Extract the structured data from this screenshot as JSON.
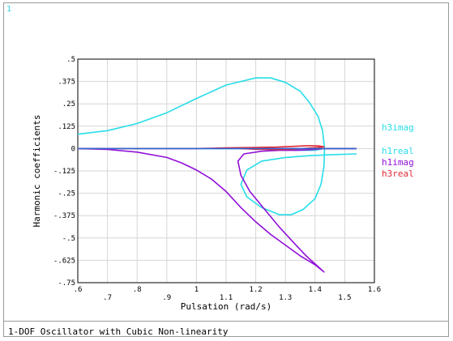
{
  "window": {
    "number": "1"
  },
  "footer": {
    "title": "1-DOF Oscillator with Cubic Non-linearity"
  },
  "chart_data": {
    "type": "line",
    "xlabel": "Pulsation (rad/s)",
    "ylabel": "Harmonic coefficients",
    "xlim": [
      0.6,
      1.6
    ],
    "ylim": [
      -0.75,
      0.5
    ],
    "xticks": [
      {
        "v": 0.6,
        "label": ".6"
      },
      {
        "v": 0.7,
        "label": ".7"
      },
      {
        "v": 0.8,
        "label": ".8"
      },
      {
        "v": 0.9,
        "label": ".9"
      },
      {
        "v": 1.0,
        "label": "1"
      },
      {
        "v": 1.1,
        "label": "1.1"
      },
      {
        "v": 1.2,
        "label": "1.2"
      },
      {
        "v": 1.3,
        "label": "1.3"
      },
      {
        "v": 1.4,
        "label": "1.4"
      },
      {
        "v": 1.5,
        "label": "1.5"
      },
      {
        "v": 1.6,
        "label": "1.6"
      }
    ],
    "yticks": [
      {
        "v": 0.5,
        "label": ".5"
      },
      {
        "v": 0.375,
        "label": ".375"
      },
      {
        "v": 0.25,
        "label": ".25"
      },
      {
        "v": 0.125,
        "label": ".125"
      },
      {
        "v": 0,
        "label": "0"
      },
      {
        "v": -0.125,
        "label": "-.125"
      },
      {
        "v": -0.25,
        "label": "-.25"
      },
      {
        "v": -0.375,
        "label": "-.375"
      },
      {
        "v": -0.5,
        "label": "-.5"
      },
      {
        "v": -0.625,
        "label": "-.625"
      },
      {
        "v": -0.75,
        "label": "-.75"
      }
    ],
    "grid": true,
    "series": [
      {
        "name": "h3imag",
        "color": "#27dde9",
        "points": [
          [
            0.6,
            0.08
          ],
          [
            0.7,
            0.1
          ],
          [
            0.8,
            0.14
          ],
          [
            0.9,
            0.2
          ],
          [
            1.0,
            0.28
          ],
          [
            1.1,
            0.355
          ],
          [
            1.2,
            0.395
          ],
          [
            1.25,
            0.395
          ],
          [
            1.3,
            0.37
          ],
          [
            1.35,
            0.32
          ],
          [
            1.38,
            0.26
          ],
          [
            1.41,
            0.18
          ],
          [
            1.425,
            0.1
          ],
          [
            1.432,
            0.0
          ],
          [
            1.43,
            -0.1
          ],
          [
            1.42,
            -0.2
          ],
          [
            1.4,
            -0.28
          ],
          [
            1.36,
            -0.34
          ],
          [
            1.32,
            -0.37
          ],
          [
            1.28,
            -0.37
          ],
          [
            1.22,
            -0.33
          ],
          [
            1.17,
            -0.27
          ],
          [
            1.15,
            -0.2
          ],
          [
            1.17,
            -0.12
          ],
          [
            1.22,
            -0.07
          ],
          [
            1.3,
            -0.05
          ],
          [
            1.38,
            -0.04
          ],
          [
            1.45,
            -0.035
          ],
          [
            1.54,
            -0.03
          ]
        ]
      },
      {
        "name": "h1real",
        "color": "#27dde9",
        "points": [
          [
            0.6,
            0.0
          ],
          [
            0.8,
            0.0
          ],
          [
            1.0,
            0.0
          ],
          [
            1.15,
            0.0
          ],
          [
            1.25,
            0.0
          ],
          [
            1.3,
            -0.005
          ],
          [
            1.35,
            -0.01
          ],
          [
            1.4,
            -0.01
          ],
          [
            1.43,
            0.0
          ],
          [
            1.54,
            0.0
          ]
        ]
      },
      {
        "name": "h1imag",
        "color": "#9010d8",
        "points": [
          [
            0.6,
            0.0
          ],
          [
            0.7,
            -0.005
          ],
          [
            0.8,
            -0.02
          ],
          [
            0.9,
            -0.05
          ],
          [
            0.95,
            -0.08
          ],
          [
            1.0,
            -0.12
          ],
          [
            1.05,
            -0.17
          ],
          [
            1.1,
            -0.24
          ],
          [
            1.15,
            -0.33
          ],
          [
            1.2,
            -0.41
          ],
          [
            1.25,
            -0.48
          ],
          [
            1.3,
            -0.54
          ],
          [
            1.35,
            -0.6
          ],
          [
            1.4,
            -0.65
          ],
          [
            1.43,
            -0.69
          ],
          [
            1.41,
            -0.66
          ],
          [
            1.37,
            -0.6
          ],
          [
            1.33,
            -0.53
          ],
          [
            1.28,
            -0.44
          ],
          [
            1.23,
            -0.34
          ],
          [
            1.18,
            -0.24
          ],
          [
            1.15,
            -0.15
          ],
          [
            1.14,
            -0.07
          ],
          [
            1.16,
            -0.03
          ],
          [
            1.22,
            -0.015
          ],
          [
            1.28,
            -0.01
          ],
          [
            1.34,
            -0.01
          ],
          [
            1.4,
            -0.005
          ],
          [
            1.43,
            0.0
          ],
          [
            1.54,
            0.0
          ]
        ]
      },
      {
        "name": "h3real",
        "color": "#e02a36",
        "points": [
          [
            0.6,
            0.0
          ],
          [
            0.9,
            0.0
          ],
          [
            1.0,
            0.0
          ],
          [
            1.1,
            0.004
          ],
          [
            1.2,
            0.006
          ],
          [
            1.27,
            0.008
          ],
          [
            1.32,
            0.012
          ],
          [
            1.37,
            0.016
          ],
          [
            1.41,
            0.015
          ],
          [
            1.43,
            0.01
          ],
          [
            1.41,
            0.006
          ],
          [
            1.37,
            0.002
          ],
          [
            1.32,
            -0.004
          ],
          [
            1.27,
            -0.006
          ],
          [
            1.2,
            -0.004
          ],
          [
            1.15,
            0.0
          ],
          [
            1.3,
            0.0
          ],
          [
            1.43,
            0.0
          ],
          [
            1.54,
            0.0
          ]
        ]
      },
      {
        "name": "",
        "color": "#2f67d8",
        "points": [
          [
            0.6,
            0.0
          ],
          [
            0.9,
            0.0
          ],
          [
            1.1,
            0.0
          ],
          [
            1.3,
            0.0
          ],
          [
            1.43,
            0.0
          ],
          [
            1.54,
            0.0
          ]
        ]
      }
    ],
    "legend": {
      "placement": "right",
      "entries": [
        {
          "label": "h3imag",
          "color": "#27dde9"
        },
        {
          "label": "h1real",
          "color": "#27dde9"
        },
        {
          "label": "h1imag",
          "color": "#9010d8"
        },
        {
          "label": "h3real",
          "color": "#e02a36"
        }
      ]
    }
  }
}
